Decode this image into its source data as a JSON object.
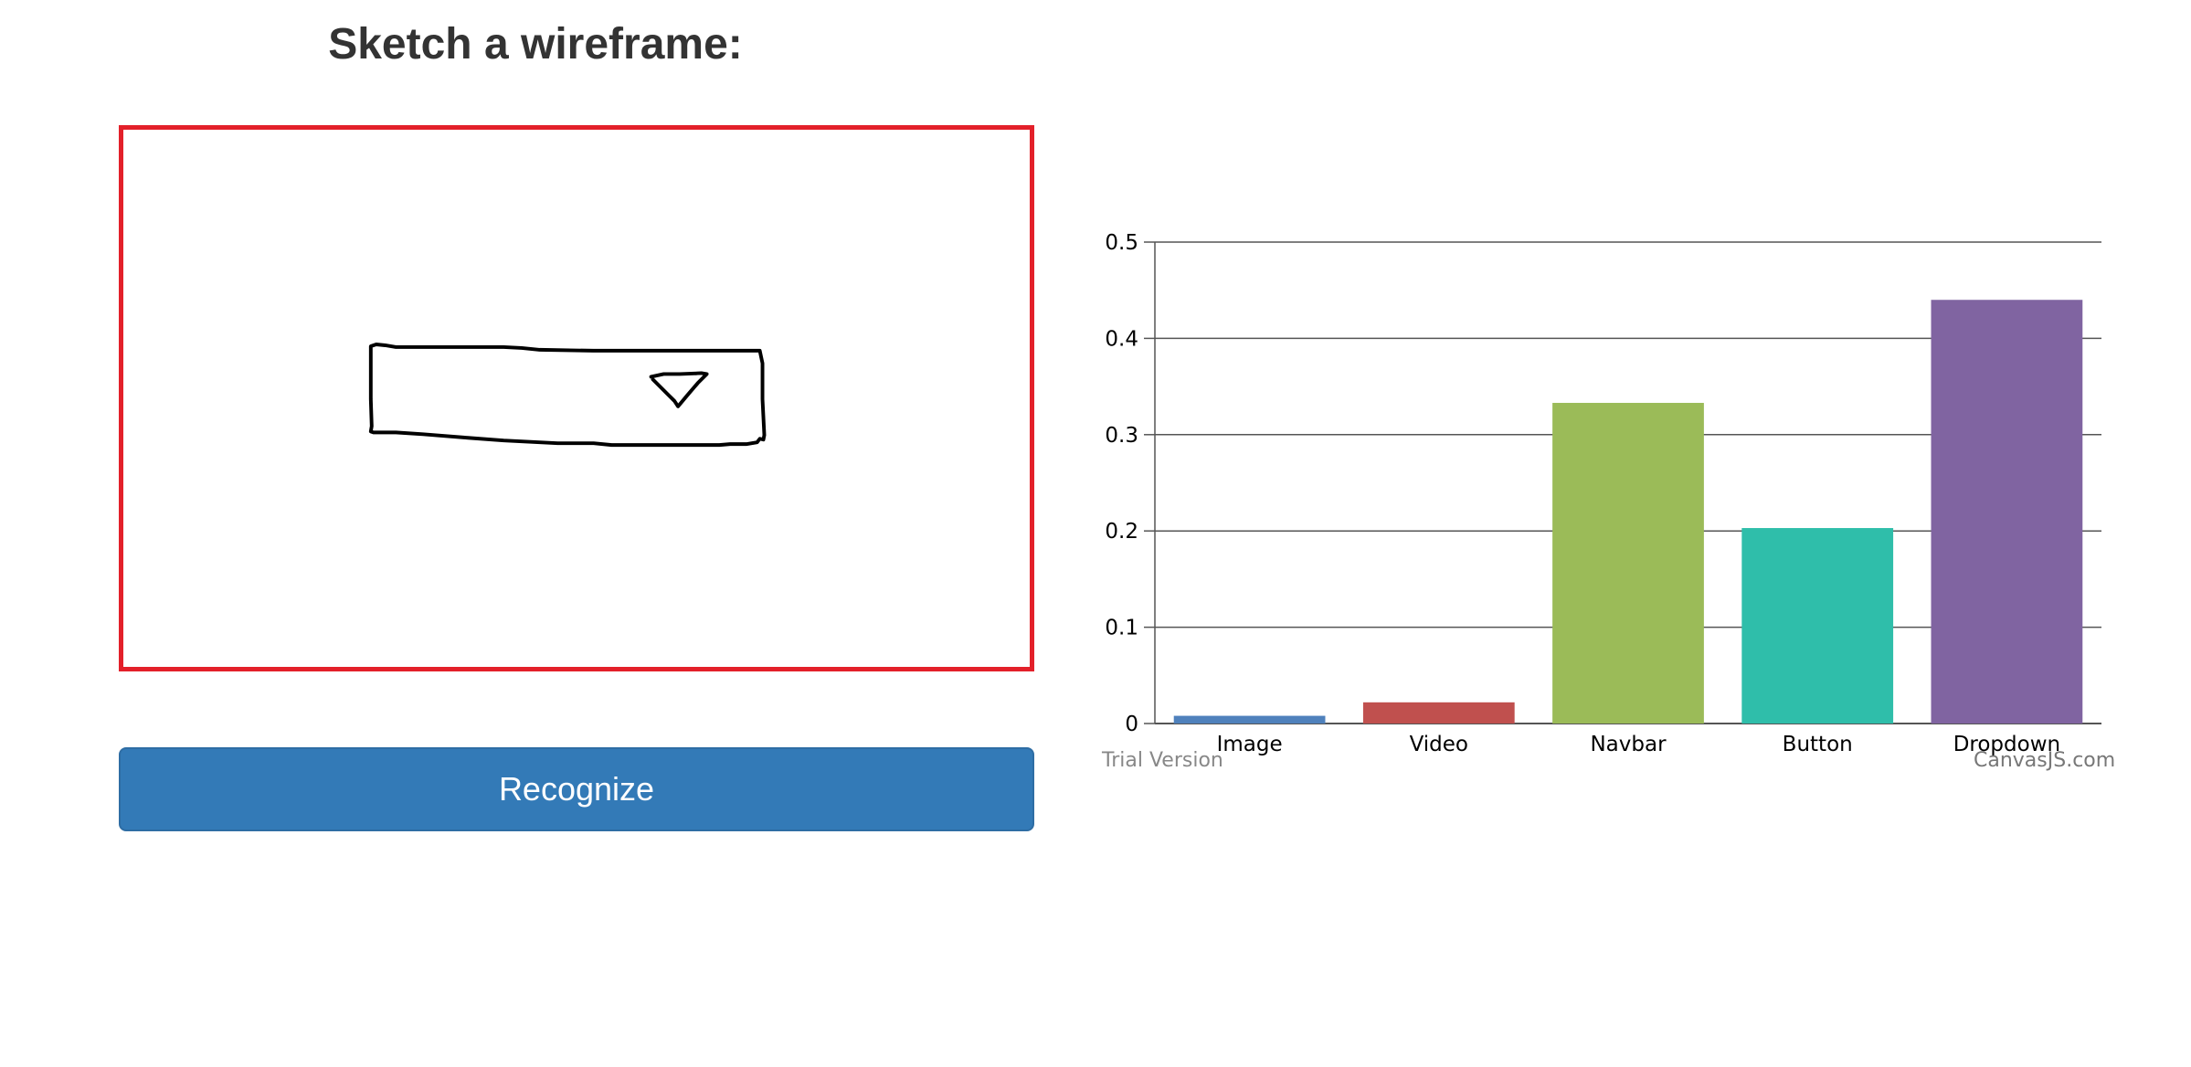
{
  "header": {
    "title": "Sketch a wireframe:"
  },
  "canvas": {
    "border_color": "#e3202a",
    "stroke_color": "#000000"
  },
  "actions": {
    "recognize_label": "Recognize",
    "button_color": "#337ab7"
  },
  "chart_credits": {
    "trial": "Trial Version",
    "brand": "CanvasJS.com"
  },
  "chart_data": {
    "type": "bar",
    "categories": [
      "Image",
      "Video",
      "Navbar",
      "Button",
      "Dropdown"
    ],
    "values": [
      0.008,
      0.022,
      0.333,
      0.203,
      0.44
    ],
    "colors": [
      "#4f81bc",
      "#c0504e",
      "#9bbb58",
      "#2fbeaa",
      "#8064a1"
    ],
    "ylim": [
      0,
      0.5
    ],
    "yticks": [
      0,
      0.1,
      0.2,
      0.3,
      0.4,
      0.5
    ],
    "grid": true,
    "title": "",
    "xlabel": "",
    "ylabel": ""
  }
}
